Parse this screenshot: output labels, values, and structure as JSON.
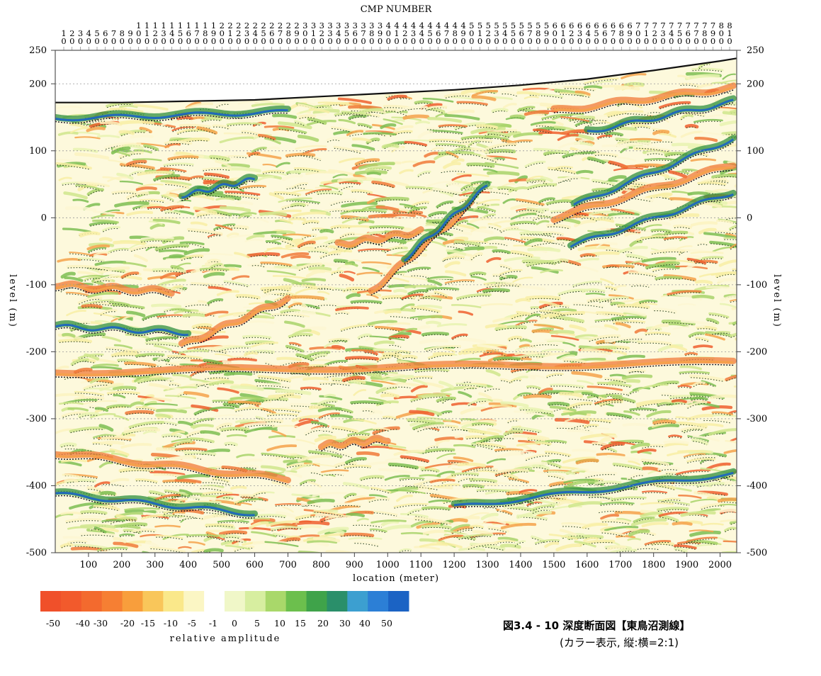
{
  "chart_data": {
    "type": "heatmap",
    "title": "",
    "top_axis_label": "CMP NUMBER",
    "top_ticks": [
      "10",
      "20",
      "30",
      "40",
      "50",
      "60",
      "70",
      "80",
      "90",
      "100",
      "110",
      "120",
      "130",
      "140",
      "150",
      "160",
      "170",
      "180",
      "190",
      "200",
      "210",
      "220",
      "230",
      "240",
      "250",
      "260",
      "270",
      "280",
      "290",
      "300",
      "310",
      "320",
      "330",
      "340",
      "350",
      "360",
      "370",
      "380",
      "390",
      "400",
      "410",
      "420",
      "430",
      "440",
      "450",
      "460",
      "470",
      "480",
      "490",
      "500",
      "510",
      "520",
      "530",
      "540",
      "550",
      "560",
      "570",
      "580",
      "590",
      "600",
      "610",
      "620",
      "630",
      "640",
      "650",
      "660",
      "670",
      "680",
      "690",
      "700",
      "710",
      "720",
      "730",
      "740",
      "750",
      "760",
      "770",
      "780",
      "790",
      "800",
      "810"
    ],
    "xlabel": "location (meter)",
    "xlim": [
      0,
      2050
    ],
    "xticks": [
      100,
      200,
      300,
      400,
      500,
      600,
      700,
      800,
      900,
      1000,
      1100,
      1200,
      1300,
      1400,
      1500,
      1600,
      1700,
      1800,
      1900,
      2000
    ],
    "ylabel_left": "level (m)",
    "ylabel_right": "level (m)",
    "ylim": [
      -500,
      250
    ],
    "yticks": [
      250,
      200,
      100,
      0,
      -100,
      -200,
      -300,
      -400,
      -500
    ],
    "grid": "horizontal dotted",
    "surface_profile": {
      "x": [
        0,
        200,
        400,
        600,
        800,
        1000,
        1200,
        1400,
        1600,
        1800,
        2000,
        2050
      ],
      "level": [
        172,
        172,
        174,
        176,
        181,
        186,
        191,
        198,
        207,
        220,
        234,
        238
      ]
    },
    "reflector_bands": [
      {
        "x0": 0,
        "y0": 150,
        "x1": 700,
        "y1": 160,
        "polarity": "negative"
      },
      {
        "x0": 380,
        "y0": 35,
        "x1": 600,
        "y1": 60,
        "polarity": "negative"
      },
      {
        "x0": 0,
        "y0": -100,
        "x1": 350,
        "y1": -110,
        "polarity": "positive"
      },
      {
        "x0": 0,
        "y0": -160,
        "x1": 400,
        "y1": -170,
        "polarity": "negative"
      },
      {
        "x0": 380,
        "y0": -190,
        "x1": 700,
        "y1": -120,
        "polarity": "positive"
      },
      {
        "x0": 850,
        "y0": -40,
        "x1": 1100,
        "y1": -20,
        "polarity": "positive"
      },
      {
        "x0": 950,
        "y0": -110,
        "x1": 1250,
        "y1": 20,
        "polarity": "positive"
      },
      {
        "x0": 1050,
        "y0": -60,
        "x1": 1300,
        "y1": 50,
        "polarity": "negative"
      },
      {
        "x0": 1500,
        "y0": 0,
        "x1": 2040,
        "y1": 80,
        "polarity": "positive"
      },
      {
        "x0": 1550,
        "y0": -40,
        "x1": 2040,
        "y1": 40,
        "polarity": "negative"
      },
      {
        "x0": 1560,
        "y0": 20,
        "x1": 2040,
        "y1": 120,
        "polarity": "negative"
      },
      {
        "x0": 1500,
        "y0": 160,
        "x1": 2040,
        "y1": 195,
        "polarity": "positive"
      },
      {
        "x0": 1600,
        "y0": 130,
        "x1": 2040,
        "y1": 175,
        "polarity": "negative"
      },
      {
        "x0": 0,
        "y0": -230,
        "x1": 2040,
        "y1": -215,
        "polarity": "positive"
      },
      {
        "x0": 0,
        "y0": -350,
        "x1": 700,
        "y1": -390,
        "polarity": "positive"
      },
      {
        "x0": 800,
        "y0": -340,
        "x1": 1000,
        "y1": -330,
        "polarity": "positive"
      },
      {
        "x0": 0,
        "y0": -410,
        "x1": 600,
        "y1": -440,
        "polarity": "negative"
      },
      {
        "x0": 1200,
        "y0": -430,
        "x1": 2040,
        "y1": -380,
        "polarity": "negative"
      }
    ],
    "colorbar": {
      "label": "relative amplitude",
      "ticks": [
        "-50",
        "-40",
        "-30",
        "-20",
        "-15",
        "-10",
        "-5",
        "-1",
        "0",
        "5",
        "10",
        "15",
        "20",
        "30",
        "40",
        "50"
      ],
      "colors": [
        "#f0502a",
        "#f25a2c",
        "#f36a2e",
        "#f67f33",
        "#f89e3c",
        "#f9c65a",
        "#fae88a",
        "#fbf6c4",
        "#ffffff",
        "#f0f7c8",
        "#d7eea0",
        "#a9d86a",
        "#6cbf4d",
        "#3fa34a",
        "#2a8f6a",
        "#3c9fd0",
        "#2c7fd6",
        "#1b63c4"
      ]
    }
  },
  "caption": {
    "line1": "図3.4 - 10 深度断面図【東鳥沼測線】",
    "line2": "(カラー表示, 縦:横=2:1)"
  }
}
